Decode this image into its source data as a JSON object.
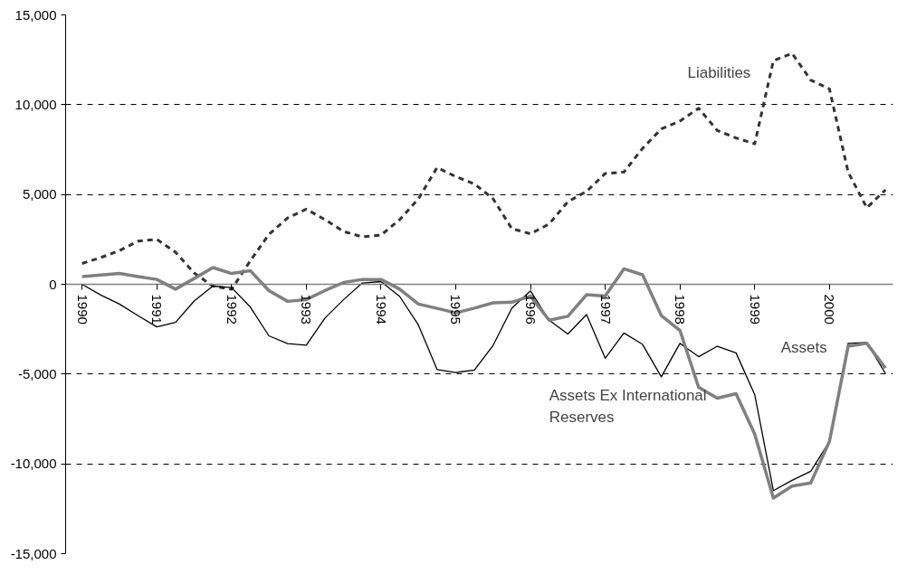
{
  "chart_data": {
    "type": "line",
    "x": [
      1990,
      1990.25,
      1990.5,
      1990.75,
      1991,
      1991.25,
      1991.5,
      1991.75,
      1992,
      1992.25,
      1992.5,
      1992.75,
      1993,
      1993.25,
      1993.5,
      1993.75,
      1994,
      1994.25,
      1994.5,
      1994.75,
      1995,
      1995.25,
      1995.5,
      1995.75,
      1996,
      1996.25,
      1996.5,
      1996.75,
      1997,
      1997.25,
      1997.5,
      1997.75,
      1998,
      1998.25,
      1998.5,
      1998.75,
      1999,
      1999.25,
      1999.5,
      1999.75,
      2000,
      2000.25,
      2000.5,
      2000.75
    ],
    "series": [
      {
        "name": "Liabilities",
        "color": "#333333",
        "line_style": "dashed",
        "values": [
          1160,
          1490,
          1870,
          2400,
          2500,
          1790,
          630,
          -100,
          -280,
          1300,
          2780,
          3690,
          4180,
          3600,
          2940,
          2640,
          2740,
          3600,
          4760,
          6500,
          6000,
          5590,
          4760,
          3100,
          2810,
          3360,
          4600,
          5170,
          6170,
          6250,
          7570,
          8650,
          9090,
          9800,
          8560,
          8150,
          7820,
          12450,
          12860,
          11370,
          10880,
          6250,
          4260,
          5260
        ]
      },
      {
        "name": "Assets",
        "color": "#000000",
        "line_style": "solid",
        "values": [
          0,
          -600,
          -1100,
          -1750,
          -2370,
          -2120,
          -930,
          -100,
          -180,
          -1260,
          -2870,
          -3300,
          -3390,
          -1880,
          -850,
          70,
          150,
          -680,
          -2260,
          -4750,
          -4910,
          -4780,
          -3400,
          -1330,
          -370,
          -2000,
          -2770,
          -1690,
          -4120,
          -2710,
          -3350,
          -5150,
          -3290,
          -4030,
          -3450,
          -3820,
          -6140,
          -11490,
          -10920,
          -10410,
          -8750,
          -3290,
          -3240,
          -4970
        ]
      },
      {
        "name": "Assets Ex International Reserves",
        "color": "#808080",
        "line_style": "solid",
        "values": [
          430,
          510,
          600,
          430,
          270,
          -270,
          320,
          930,
          600,
          760,
          -350,
          -950,
          -850,
          -350,
          100,
          270,
          270,
          -270,
          -1100,
          -1340,
          -1590,
          -1330,
          -1030,
          -1000,
          -660,
          -2000,
          -1780,
          -580,
          -660,
          860,
          530,
          -1740,
          -2570,
          -5740,
          -6340,
          -6090,
          -8340,
          -11900,
          -11240,
          -11060,
          -8750,
          -3450,
          -3290,
          -4670
        ]
      }
    ],
    "xlim": [
      1989.78,
      2000.85
    ],
    "xticks": [
      1990,
      1991,
      1992,
      1993,
      1994,
      1995,
      1996,
      1997,
      1998,
      1999,
      2000
    ],
    "ylim": [
      -15000,
      15000
    ],
    "yticks": [
      {
        "value": -15000,
        "label": "-15,000"
      },
      {
        "value": -10000,
        "label": "-10,000"
      },
      {
        "value": -5000,
        "label": "-5,000"
      },
      {
        "value": 0,
        "label": "0"
      },
      {
        "value": 5000,
        "label": "5,000"
      },
      {
        "value": 10000,
        "label": "10,000"
      },
      {
        "value": 15000,
        "label": "15,000"
      }
    ],
    "grid": "y",
    "marker": "none"
  }
}
